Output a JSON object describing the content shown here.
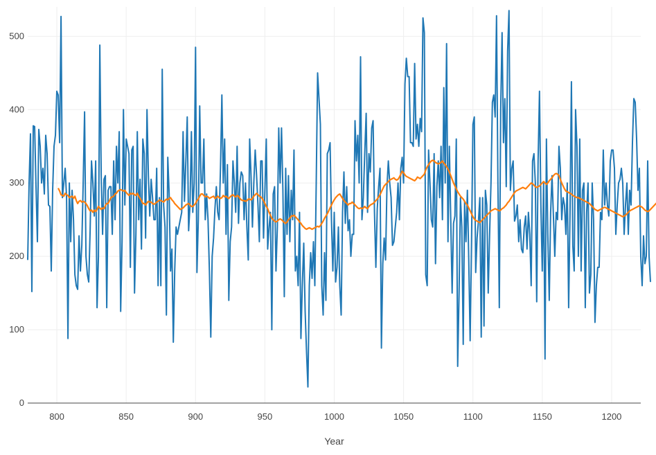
{
  "chart_data": {
    "type": "line",
    "title": "",
    "xlabel": "Year",
    "ylabel": "",
    "xlim": [
      779,
      1221
    ],
    "ylim": [
      0,
      540
    ],
    "x_ticks": [
      800,
      850,
      900,
      950,
      1000,
      1050,
      1100,
      1150,
      1200
    ],
    "y_ticks": [
      0,
      100,
      200,
      300,
      400,
      500
    ],
    "grid": true,
    "legend": "none",
    "colors": {
      "series1": "#1f77b4",
      "series2": "#ff7f0e",
      "grid": "#eeeeee",
      "axis": "#444444"
    },
    "series": [
      {
        "color": "#1f77b4",
        "x_start": 779,
        "x_step": 1,
        "values": [
          195,
          300,
          367,
          152,
          378,
          377,
          295,
          220,
          373,
          350,
          300,
          320,
          285,
          365,
          340,
          270,
          268,
          180,
          290,
          350,
          365,
          425,
          420,
          355,
          527,
          280,
          300,
          320,
          280,
          88,
          300,
          220,
          290,
          250,
          175,
          160,
          155,
          228,
          180,
          215,
          300,
          397,
          200,
          175,
          165,
          235,
          330,
          300,
          255,
          330,
          130,
          200,
          488,
          310,
          230,
          305,
          310,
          130,
          290,
          295,
          295,
          230,
          330,
          250,
          350,
          300,
          370,
          125,
          220,
          400,
          270,
          360,
          350,
          340,
          185,
          345,
          350,
          150,
          230,
          370,
          250,
          305,
          210,
          360,
          340,
          225,
          400,
          310,
          255,
          305,
          280,
          250,
          250,
          320,
          160,
          280,
          160,
          455,
          270,
          240,
          120,
          335,
          285,
          180,
          210,
          83,
          180,
          240,
          230,
          240,
          250,
          260,
          370,
          275,
          330,
          390,
          235,
          270,
          370,
          260,
          300,
          485,
          178,
          250,
          405,
          300,
          300,
          360,
          250,
          285,
          250,
          180,
          90,
          200,
          225,
          265,
          295,
          260,
          250,
          320,
          420,
          300,
          360,
          230,
          325,
          140,
          220,
          240,
          330,
          300,
          260,
          350,
          245,
          300,
          315,
          310,
          250,
          300,
          240,
          195,
          360,
          310,
          240,
          300,
          345,
          310,
          270,
          220,
          330,
          330,
          225,
          290,
          360,
          210,
          240,
          260,
          100,
          285,
          295,
          180,
          240,
          375,
          300,
          375,
          290,
          145,
          320,
          230,
          310,
          220,
          290,
          250,
          345,
          180,
          200,
          160,
          260,
          88,
          160,
          218,
          125,
          70,
          22,
          160,
          205,
          170,
          220,
          160,
          300,
          450,
          415,
          380,
          160,
          120,
          205,
          140,
          340,
          345,
          355,
          250,
          180,
          260,
          165,
          185,
          240,
          160,
          120,
          260,
          315,
          245,
          295,
          235,
          250,
          200,
          230,
          230,
          385,
          330,
          365,
          300,
          472,
          250,
          280,
          340,
          395,
          260,
          340,
          315,
          375,
          385,
          260,
          185,
          265,
          295,
          320,
          75,
          190,
          225,
          195,
          295,
          330,
          300,
          280,
          215,
          220,
          240,
          260,
          300,
          250,
          320,
          335,
          300,
          435,
          470,
          445,
          445,
          355,
          355,
          350,
          463,
          360,
          380,
          350,
          388,
          370,
          525,
          505,
          175,
          160,
          345,
          300,
          250,
          240,
          340,
          190,
          295,
          330,
          280,
          350,
          250,
          430,
          300,
          490,
          220,
          350,
          250,
          150,
          245,
          255,
          360,
          50,
          150,
          280,
          240,
          80,
          275,
          220,
          290,
          195,
          85,
          220,
          380,
          390,
          178,
          225,
          248,
          280,
          90,
          280,
          105,
          290,
          270,
          150,
          230,
          300,
          410,
          420,
          390,
          528,
          300,
          130,
          400,
          505,
          355,
          415,
          295,
          480,
          535,
          290,
          320,
          330,
          248,
          255,
          270,
          220,
          250,
          210,
          205,
          240,
          255,
          210,
          260,
          230,
          160,
          330,
          340,
          300,
          138,
          330,
          425,
          270,
          180,
          300,
          60,
          360,
          230,
          140,
          260,
          310,
          255,
          200,
          260,
          250,
          350,
          320,
          250,
          280,
          270,
          230,
          300,
          130,
          260,
          438,
          215,
          180,
          400,
          350,
          200,
          360,
          180,
          290,
          300,
          130,
          260,
          300,
          150,
          175,
          300,
          250,
          110,
          160,
          185,
          185,
          260,
          250,
          345,
          270,
          300,
          270,
          255,
          330,
          345,
          345,
          320,
          230,
          270,
          300,
          305,
          320,
          300,
          230,
          270,
          300,
          230,
          290,
          270,
          355,
          415,
          410,
          360,
          290,
          320,
          200,
          160,
          228,
          190,
          200,
          330,
          200,
          165
        ]
      },
      {
        "color": "#ff7f0e",
        "x_start": 801,
        "x_step": 1,
        "values": [
          293,
          289,
          284,
          283,
          282,
          286,
          284,
          283,
          280,
          281,
          282,
          279,
          282,
          276,
          272,
          275,
          276,
          274,
          275,
          274,
          272,
          269,
          265,
          262,
          263,
          260,
          263,
          261,
          264,
          268,
          266,
          264,
          266,
          265,
          269,
          272,
          272,
          276,
          280,
          281,
          282,
          285,
          286,
          289,
          290,
          291,
          290,
          289,
          290,
          287,
          285,
          283,
          286,
          285,
          286,
          284,
          283,
          286,
          282,
          279,
          276,
          272,
          272,
          270,
          273,
          275,
          274,
          274,
          272,
          271,
          272,
          274,
          275,
          277,
          276,
          275,
          274,
          276,
          278,
          277,
          279,
          280,
          277,
          275,
          272,
          270,
          268,
          266,
          264,
          265,
          266,
          268,
          270,
          271,
          272,
          270,
          268,
          268,
          270,
          272,
          276,
          278,
          282,
          285,
          285,
          283,
          281,
          282,
          281,
          279,
          280,
          281,
          282,
          279,
          280,
          282,
          280,
          279,
          280,
          283,
          281,
          282,
          280,
          279,
          281,
          283,
          284,
          282,
          281,
          283,
          282,
          279,
          277,
          276,
          276,
          275,
          276,
          278,
          278,
          277,
          279,
          282,
          284,
          286,
          284,
          282,
          281,
          279,
          276,
          272,
          268,
          265,
          260,
          256,
          252,
          250,
          248,
          247,
          248,
          250,
          251,
          250,
          248,
          246,
          245,
          247,
          250,
          252,
          255,
          255,
          256,
          254,
          252,
          250,
          247,
          245,
          242,
          240,
          238,
          237,
          238,
          239,
          238,
          237,
          238,
          239,
          240,
          241,
          240,
          242,
          245,
          248,
          252,
          255,
          258,
          262,
          266,
          270,
          274,
          277,
          280,
          282,
          284,
          285,
          282,
          279,
          276,
          274,
          272,
          270,
          272,
          272,
          274,
          272,
          270,
          268,
          266,
          265,
          266,
          265,
          266,
          268,
          266,
          265,
          268,
          270,
          271,
          272,
          274,
          276,
          278,
          281,
          284,
          288,
          292,
          296,
          298,
          300,
          302,
          304,
          305,
          306,
          307,
          305,
          304,
          305,
          308,
          312,
          316,
          314,
          311,
          309,
          308,
          307,
          306,
          305,
          304,
          303,
          305,
          308,
          307,
          306,
          308,
          310,
          312,
          318,
          322,
          325,
          328,
          330,
          331,
          330,
          328,
          327,
          326,
          327,
          328,
          330,
          327,
          325,
          322,
          319,
          315,
          310,
          305,
          300,
          296,
          292,
          288,
          285,
          282,
          280,
          278,
          275,
          272,
          270,
          266,
          262,
          258,
          254,
          251,
          249,
          248,
          247,
          246,
          248,
          250,
          252,
          254,
          256,
          258,
          260,
          262,
          263,
          264,
          265,
          264,
          263,
          262,
          263,
          265,
          266,
          268,
          270,
          273,
          275,
          278,
          281,
          284,
          287,
          289,
          290,
          291,
          292,
          293,
          294,
          293,
          292,
          294,
          296,
          298,
          300,
          299,
          297,
          295,
          294,
          295,
          296,
          298,
          300,
          302,
          300,
          298,
          300,
          303,
          305,
          307,
          310,
          312,
          313,
          312,
          310,
          305,
          300,
          296,
          292,
          289,
          288,
          287,
          286,
          285,
          283,
          282,
          281,
          280,
          280,
          279,
          278,
          277,
          276,
          275,
          274,
          273,
          272,
          270,
          268,
          266,
          264,
          263,
          262,
          263,
          264,
          265,
          266,
          267,
          266,
          265,
          264,
          263,
          262,
          261,
          260,
          259,
          258,
          257,
          256,
          255,
          254,
          255,
          256,
          258,
          260,
          262,
          263,
          264,
          265,
          266,
          267,
          268,
          269,
          268,
          267,
          265,
          263,
          262,
          261,
          262,
          264,
          266,
          268,
          270,
          272,
          274,
          273,
          270,
          267,
          264,
          262,
          261,
          260,
          262,
          263,
          262,
          261
        ]
      }
    ]
  }
}
